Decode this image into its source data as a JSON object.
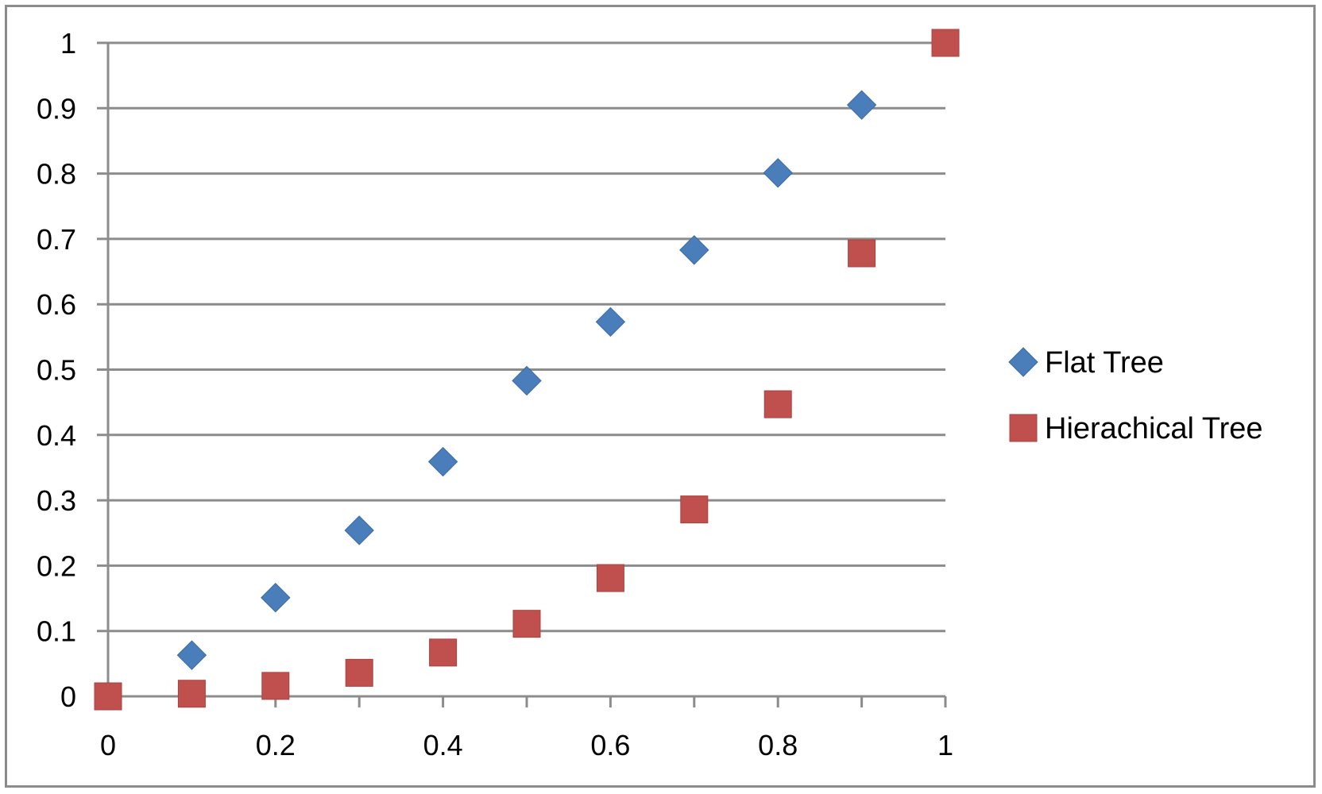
{
  "chart_data": {
    "type": "scatter",
    "title": "",
    "xlabel": "",
    "ylabel": "",
    "xlim": [
      0,
      1
    ],
    "ylim": [
      0,
      1
    ],
    "x_ticks": [
      "0",
      "0.2",
      "0.4",
      "0.6",
      "0.8",
      "1"
    ],
    "y_ticks": [
      "0",
      "0.1",
      "0.2",
      "0.3",
      "0.4",
      "0.5",
      "0.6",
      "0.7",
      "0.8",
      "0.9",
      "1"
    ],
    "grid": "horizontal",
    "legend_position": "right",
    "series": [
      {
        "name": "Flat Tree",
        "marker": "diamond",
        "color": "#4a7ebb",
        "x": [
          0.1,
          0.2,
          0.3,
          0.4,
          0.5,
          0.6,
          0.7,
          0.8,
          0.9
        ],
        "y": [
          0.063,
          0.151,
          0.254,
          0.359,
          0.483,
          0.573,
          0.683,
          0.801,
          0.905
        ]
      },
      {
        "name": "Hierachical Tree",
        "marker": "square",
        "color": "#c0504d",
        "x": [
          0,
          0.1,
          0.2,
          0.3,
          0.4,
          0.5,
          0.6,
          0.7,
          0.8,
          0.9,
          1
        ],
        "y": [
          0,
          0.004,
          0.016,
          0.036,
          0.067,
          0.111,
          0.181,
          0.286,
          0.447,
          0.678,
          1
        ]
      }
    ]
  }
}
